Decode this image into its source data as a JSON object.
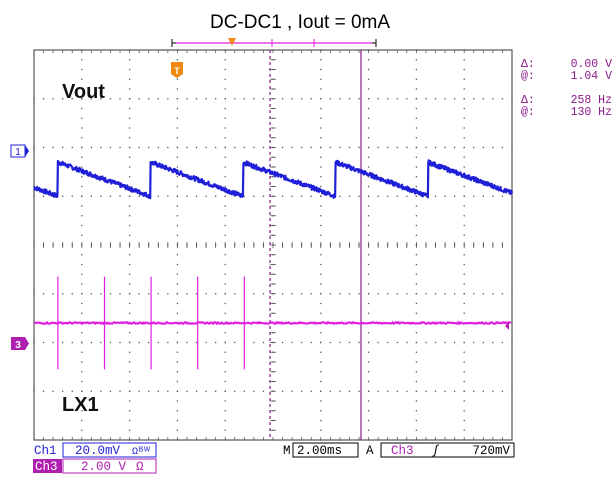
{
  "title": "DC-DC1 , Iout = 0mA",
  "traces": {
    "ch1_label": "Vout",
    "ch3_label": "LX1"
  },
  "markers": {
    "ch1": "1",
    "ch3": "3",
    "trigger": "T"
  },
  "cursor_readout": {
    "amp_delta_symbol": "Δ:",
    "amp_delta_value": "0.00 V",
    "amp_at_symbol": "@:",
    "amp_at_value": "1.04 V",
    "freq_delta_symbol": "Δ:",
    "freq_delta_value": "258 Hz",
    "freq_at_symbol": "@:",
    "freq_at_value": "130 Hz"
  },
  "status": {
    "ch1_name": "Ch1",
    "ch1_scale": "20.0mV",
    "ch1_coupling": "Ωᴮᵂ",
    "ch3_name": "Ch3",
    "ch3_scale": "2.00 V",
    "ch3_coupling": "Ω",
    "timebase_prefix": "M",
    "timebase": "2.00ms",
    "acq_mode": "A",
    "trigger_source": "Ch3",
    "trigger_slope": "ʃ",
    "trigger_level": "720mV"
  },
  "colors": {
    "ch1": "#1f1fd8",
    "ch3": "#e020e0",
    "cursor": "#8a1a8a",
    "trigger_marker": "#f08a10",
    "grid": "#555555",
    "readout": "#8a1a8a"
  },
  "chart_data": {
    "type": "line",
    "x_unit": "ms",
    "x_div": 2.0,
    "x_divisions": 10,
    "y_divisions": 8,
    "series": [
      {
        "name": "Vout",
        "period_ms": 3.87,
        "ramp_high_div": 5.7,
        "ramp_low_div": 5.0,
        "first_peak_ms": 1.0
      },
      {
        "name": "LX1",
        "baseline_div": 2.4,
        "spike_height_div": 0.95,
        "spike_times_ms": [
          1.0,
          2.95,
          4.9,
          6.85,
          8.8
        ]
      }
    ]
  }
}
